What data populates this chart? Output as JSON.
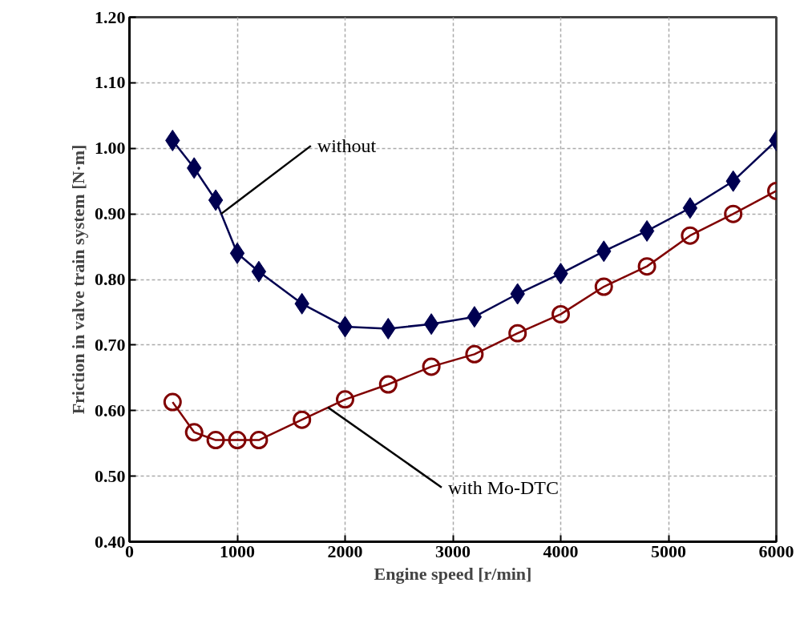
{
  "chart_data": {
    "type": "line",
    "xlabel": "Engine speed [r/min]",
    "ylabel": "Friction in valve train system [N·m]",
    "x": [
      400,
      600,
      800,
      1000,
      1200,
      1600,
      2000,
      2400,
      2800,
      3200,
      3600,
      4000,
      4400,
      4800,
      5200,
      5600,
      6000
    ],
    "series": [
      {
        "color": "#000050",
        "marker": "diamond",
        "values": [
          1.012,
          0.97,
          0.921,
          0.84,
          0.812,
          0.763,
          0.728,
          0.725,
          0.732,
          0.743,
          0.778,
          0.809,
          0.843,
          0.874,
          0.909,
          0.95,
          1.012
        ]
      },
      {
        "color": "#800000",
        "marker": "circle",
        "values": [
          0.613,
          0.567,
          0.555,
          0.555,
          0.555,
          0.586,
          0.617,
          0.64,
          0.667,
          0.686,
          0.718,
          0.747,
          0.789,
          0.82,
          0.867,
          0.9,
          0.935
        ]
      }
    ],
    "annotations": [
      {
        "text": "without",
        "x": 850,
        "y": 0.9
      },
      {
        "text": "with Mo-DTC",
        "x": 1840,
        "y": 0.605
      }
    ],
    "xlim": [
      0,
      6000
    ],
    "xticks": [
      0,
      1000,
      2000,
      3000,
      4000,
      5000,
      6000
    ],
    "ylim": [
      0.4,
      1.2
    ],
    "yticks": [
      {
        "value": 0.4,
        "label": "0.40"
      },
      {
        "value": 0.5,
        "label": "0.50"
      },
      {
        "value": 0.6,
        "label": "0.60"
      },
      {
        "value": 0.7,
        "label": "0.70"
      },
      {
        "value": 0.8,
        "label": "0.80"
      },
      {
        "value": 0.9,
        "label": "0.90"
      },
      {
        "value": 1.0,
        "label": "1.00"
      },
      {
        "value": 1.1,
        "label": "1.10"
      },
      {
        "value": 1.2,
        "label": "1.20"
      }
    ],
    "grid": true,
    "line_style": "solid"
  }
}
